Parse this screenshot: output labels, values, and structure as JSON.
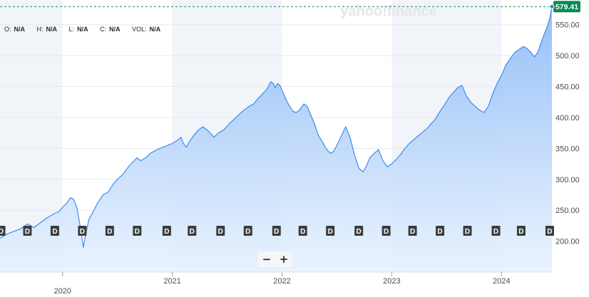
{
  "brand": {
    "watermark": "yahoo!finance"
  },
  "ohlc": [
    {
      "key": "O:",
      "value": "N/A"
    },
    {
      "key": "H:",
      "value": "N/A"
    },
    {
      "key": "L:",
      "value": "N/A"
    },
    {
      "key": "C:",
      "value": "N/A"
    },
    {
      "key": "VOL:",
      "value": "N/A"
    }
  ],
  "zoom": {
    "minus": "−",
    "plus": "+"
  },
  "colors": {
    "line": "#3d8bf0",
    "fill_top": "#8fbcf7",
    "fill_bottom": "#e8f2fe",
    "last_badge": "#0b8a55",
    "dividend_marker": "#3a3c40",
    "band": "#f1f4f9"
  },
  "chart_data": {
    "type": "area",
    "title": "",
    "xlabel": "",
    "ylabel": "",
    "ylim": [
      150,
      590
    ],
    "y_ticks": [
      "200.00",
      "250.00",
      "300.00",
      "350.00",
      "400.00",
      "450.00",
      "500.00",
      "550.00"
    ],
    "x_ticks": [
      {
        "label": "2020",
        "x": 2020.0
      },
      {
        "label": "2021",
        "x": 2021.0
      },
      {
        "label": "2022",
        "x": 2022.0
      },
      {
        "label": "2023",
        "x": 2023.0
      },
      {
        "label": "2024",
        "x": 2024.0
      }
    ],
    "xlim": [
      2019.43,
      2024.46
    ],
    "last_price": {
      "label": "579.41",
      "value": 579.41
    },
    "dividend_marker_label": "D",
    "dividends_x": [
      2019.44,
      2019.68,
      2019.93,
      2020.18,
      2020.43,
      2020.68,
      2020.95,
      2021.18,
      2021.44,
      2021.69,
      2021.95,
      2022.19,
      2022.44,
      2022.7,
      2022.95,
      2023.19,
      2023.44,
      2023.69,
      2023.95,
      2024.18,
      2024.44
    ],
    "series": [
      {
        "x": [
          2019.43,
          2019.5,
          2019.56,
          2019.62,
          2019.68,
          2019.74,
          2019.8,
          2019.86,
          2019.9,
          2019.93,
          2019.97,
          2020.0,
          2020.04,
          2020.07,
          2020.1,
          2020.13,
          2020.16,
          2020.19,
          2020.21,
          2020.24,
          2020.28,
          2020.32,
          2020.37,
          2020.42,
          2020.46,
          2020.5,
          2020.55,
          2020.6,
          2020.64,
          2020.68,
          2020.71,
          2020.76,
          2020.8,
          2020.86,
          2020.92,
          2020.97,
          2021.0,
          2021.04,
          2021.08,
          2021.1,
          2021.13,
          2021.16,
          2021.2,
          2021.24,
          2021.28,
          2021.33,
          2021.38,
          2021.42,
          2021.47,
          2021.52,
          2021.58,
          2021.64,
          2021.7,
          2021.74,
          2021.78,
          2021.82,
          2021.86,
          2021.88,
          2021.9,
          2021.92,
          2021.94,
          2021.96,
          2021.98,
          2022.01,
          2022.04,
          2022.07,
          2022.1,
          2022.13,
          2022.16,
          2022.2,
          2022.23,
          2022.26,
          2022.3,
          2022.33,
          2022.37,
          2022.4,
          2022.44,
          2022.47,
          2022.5,
          2022.54,
          2022.58,
          2022.62,
          2022.66,
          2022.7,
          2022.74,
          2022.77,
          2022.8,
          2022.84,
          2022.88,
          2022.92,
          2022.96,
          2023.0,
          2023.04,
          2023.08,
          2023.12,
          2023.16,
          2023.2,
          2023.24,
          2023.28,
          2023.32,
          2023.36,
          2023.4,
          2023.44,
          2023.48,
          2023.52,
          2023.56,
          2023.6,
          2023.64,
          2023.68,
          2023.72,
          2023.76,
          2023.8,
          2023.84,
          2023.88,
          2023.92,
          2023.96,
          2024.0,
          2024.04,
          2024.08,
          2024.12,
          2024.16,
          2024.2,
          2024.23,
          2024.27,
          2024.3,
          2024.33,
          2024.36,
          2024.39,
          2024.42,
          2024.44,
          2024.46
        ],
        "y": [
          205,
          212,
          216,
          220,
          228,
          222,
          230,
          238,
          242,
          245,
          248,
          255,
          262,
          270,
          268,
          255,
          225,
          190,
          210,
          235,
          248,
          262,
          275,
          280,
          292,
          300,
          308,
          320,
          328,
          335,
          330,
          335,
          342,
          348,
          352,
          356,
          358,
          362,
          368,
          358,
          352,
          362,
          372,
          380,
          385,
          378,
          368,
          375,
          380,
          390,
          400,
          410,
          418,
          422,
          430,
          438,
          445,
          452,
          458,
          455,
          448,
          455,
          452,
          440,
          428,
          418,
          410,
          408,
          412,
          422,
          418,
          405,
          388,
          372,
          360,
          350,
          342,
          345,
          355,
          370,
          385,
          368,
          340,
          318,
          312,
          322,
          335,
          342,
          348,
          330,
          320,
          325,
          332,
          340,
          350,
          358,
          364,
          370,
          376,
          382,
          390,
          398,
          410,
          420,
          432,
          440,
          448,
          452,
          435,
          425,
          418,
          412,
          408,
          418,
          438,
          455,
          468,
          485,
          495,
          505,
          510,
          515,
          512,
          505,
          498,
          505,
          520,
          535,
          548,
          560,
          579.41
        ]
      }
    ]
  }
}
